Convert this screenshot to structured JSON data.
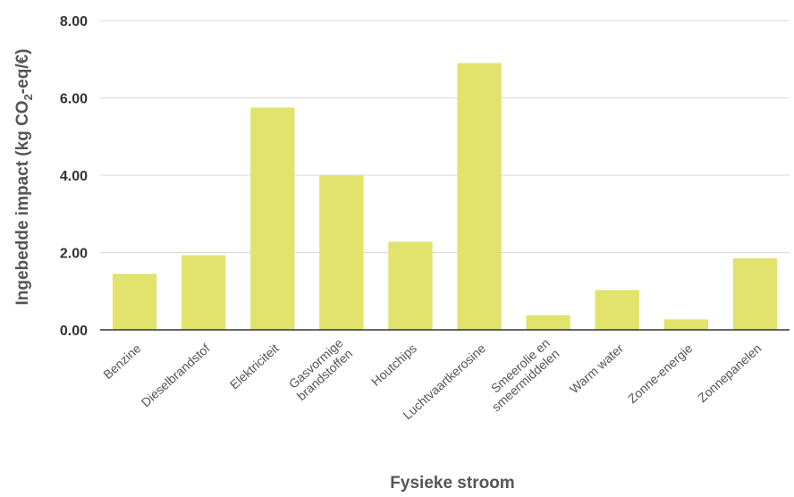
{
  "chart_data": {
    "type": "bar",
    "categories": [
      "Benzine",
      "Dieselbrandstof",
      "Elektriciteit",
      "Gasvormige brandstoffen",
      "Houtchips",
      "Luchtvaartkerosine",
      "Smeerolie en smeermiddelen",
      "Warm water",
      "Zonne-energie",
      "Zonnepanelen"
    ],
    "category_lines": [
      [
        "Benzine"
      ],
      [
        "Dieselbrandstof"
      ],
      [
        "Elektriciteit"
      ],
      [
        "Gasvormige",
        "brandstoffen"
      ],
      [
        "Houtchips"
      ],
      [
        "Luchtvaartkerosine"
      ],
      [
        "Smeerolie en",
        "smeermiddelen"
      ],
      [
        "Warm water"
      ],
      [
        "Zonne-energie"
      ],
      [
        "Zonnepanelen"
      ]
    ],
    "values": [
      1.45,
      1.93,
      5.75,
      4.0,
      2.28,
      6.9,
      0.38,
      1.03,
      0.27,
      1.85
    ],
    "ylim": [
      0,
      8
    ],
    "yticks": [
      "0.00",
      "2.00",
      "4.00",
      "6.00",
      "8.00"
    ],
    "ylabel_parts": {
      "before": "Ingebedde impact (kg CO",
      "subscript": "2",
      "after": "-eq/€)"
    },
    "xlabel": "Fysieke stroom",
    "bar_color": "#e2e36d",
    "grid": true
  }
}
